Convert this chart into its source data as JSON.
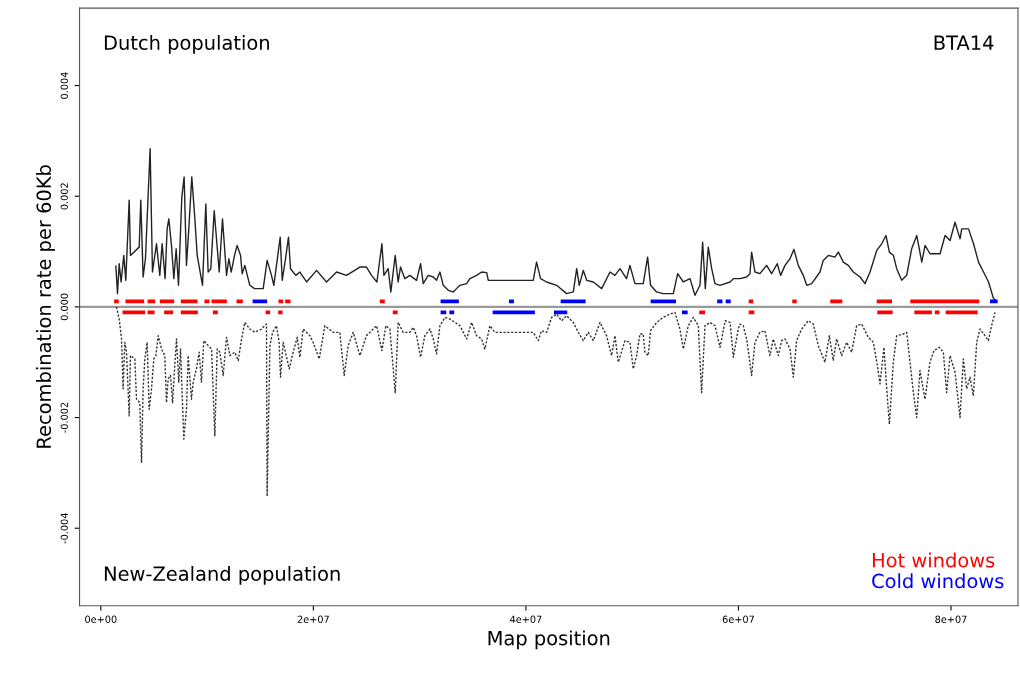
{
  "chart_data": {
    "type": "line",
    "xlabel": "Map position",
    "ylabel": "Recombination rate per 60Kb",
    "annotations": [
      "Dutch population",
      "BTA14",
      "New-Zealand population"
    ],
    "xlim": [
      -2000000,
      86300000
    ],
    "ylim": [
      -0.0054,
      0.0054
    ],
    "xticks": [
      {
        "value": 0,
        "label": "0e+00"
      },
      {
        "value": 20000000,
        "label": "2e+07"
      },
      {
        "value": 40000000,
        "label": "4e+07"
      },
      {
        "value": 60000000,
        "label": "6e+07"
      },
      {
        "value": 80000000,
        "label": "8e+07"
      }
    ],
    "yticks": [
      {
        "value": -0.004,
        "label": "-0.004"
      },
      {
        "value": -0.002,
        "label": "-0.002"
      },
      {
        "value": 0,
        "label": "0.000"
      },
      {
        "value": 0.002,
        "label": "0.002"
      },
      {
        "value": 0.004,
        "label": "0.004"
      }
    ],
    "ref_lines": [
      {
        "axis": "y",
        "value": 0,
        "color": "#9a9a9a"
      }
    ],
    "legend": "bottom right",
    "grid": false,
    "series": [
      {
        "color": "#222222",
        "line_style": "solid",
        "x": [
          1410000,
          1570000,
          1730000,
          1910000,
          2160000,
          2350000,
          2670000,
          2790000,
          3610000,
          3760000,
          3980000,
          4200000,
          4640000,
          4860000,
          5240000,
          5550000,
          5770000,
          6050000,
          6240000,
          6400000,
          6650000,
          6870000,
          7090000,
          7310000,
          7620000,
          7840000,
          8060000,
          8280000,
          8560000,
          8850000,
          9070000,
          9570000,
          9880000,
          10100000,
          10350000,
          10670000,
          11140000,
          11450000,
          11830000,
          12050000,
          12270000,
          12580000,
          12830000,
          13150000,
          13300000,
          13550000,
          14020000,
          14460000,
          15280000,
          15650000,
          16060000,
          16280000,
          16880000,
          17070000,
          17380000,
          17660000,
          17850000,
          18350000,
          18730000,
          19360000,
          20300000,
          21240000,
          22180000,
          23120000,
          24380000,
          25000000,
          25470000,
          25980000,
          26450000,
          26640000,
          27040000,
          27290000,
          27700000,
          27980000,
          28200000,
          28610000,
          29080000,
          29710000,
          30090000,
          30340000,
          30810000,
          31280000,
          31590000,
          31910000,
          32220000,
          32690000,
          33160000,
          33470000,
          33790000,
          34420000,
          34730000,
          35360000,
          35840000,
          36310000,
          36460000,
          40690000,
          41000000,
          41380000,
          41950000,
          42890000,
          43830000,
          44460000,
          44780000,
          45020000,
          45400000,
          45720000,
          46340000,
          47130000,
          47910000,
          48380000,
          48850000,
          49470000,
          49790000,
          50260000,
          51040000,
          51450000,
          51730000,
          52300000,
          52920000,
          53870000,
          54280000,
          54810000,
          55440000,
          55910000,
          56380000,
          56630000,
          56880000,
          57160000,
          57480000,
          57790000,
          58270000,
          59210000,
          59520000,
          60140000,
          60770000,
          61080000,
          61240000,
          61550000,
          62020000,
          62650000,
          63120000,
          63650000,
          63970000,
          64380000,
          64850000,
          65220000,
          65630000,
          66100000,
          66420000,
          66890000,
          67670000,
          67980000,
          68460000,
          69080000,
          69400000,
          69870000,
          70330000,
          70810000,
          71440000,
          71910000,
          72380000,
          73010000,
          73480000,
          73880000,
          74200000,
          74580000,
          74890000,
          75360000,
          75830000,
          76300000,
          76780000,
          77250000,
          77560000,
          78020000,
          78970000,
          79440000,
          79910000,
          80380000,
          80850000,
          81010000,
          81650000,
          82120000,
          82590000,
          83060000,
          83530000,
          84000000,
          84310000
        ],
        "values": [
          0.00075,
          0.00024,
          0.00078,
          0.00045,
          0.00093,
          0.00048,
          0.00193,
          0.00093,
          0.00108,
          0.00193,
          0.00054,
          0.00087,
          0.00286,
          0.00063,
          0.00114,
          0.00057,
          0.00114,
          0.00051,
          0.00141,
          0.00159,
          0.00111,
          0.00051,
          0.00105,
          0.00039,
          0.00198,
          0.00235,
          0.00075,
          0.00141,
          0.00235,
          0.00159,
          0.00093,
          0.00039,
          0.00186,
          0.00063,
          0.00069,
          0.00174,
          0.00063,
          0.00159,
          0.00057,
          0.00087,
          0.00063,
          0.00093,
          0.00111,
          0.00093,
          0.0006,
          0.00075,
          0.00039,
          0.00033,
          0.00033,
          0.00084,
          0.00057,
          0.00039,
          0.00126,
          0.00048,
          0.00087,
          0.00126,
          0.00069,
          0.00057,
          0.00063,
          0.00045,
          0.00066,
          0.00045,
          0.00063,
          0.00057,
          0.00072,
          0.00072,
          0.00057,
          0.00045,
          0.00114,
          0.00057,
          0.00069,
          0.00027,
          0.00093,
          0.00045,
          0.00072,
          0.00051,
          0.00057,
          0.00048,
          0.00078,
          0.00042,
          0.00057,
          0.00054,
          0.00048,
          0.00063,
          0.00039,
          0.0003,
          0.00027,
          0.00033,
          0.00039,
          0.00042,
          0.00051,
          0.00057,
          0.00063,
          0.00062,
          0.00048,
          0.00048,
          0.00081,
          0.00051,
          0.00045,
          0.00039,
          0.00024,
          0.00027,
          0.00069,
          0.00039,
          0.00066,
          0.00048,
          0.00045,
          0.00033,
          0.00063,
          0.00057,
          0.00069,
          0.00051,
          0.00075,
          0.00042,
          0.00042,
          0.0009,
          0.00039,
          0.00027,
          0.00024,
          0.00024,
          0.0006,
          0.00045,
          0.00051,
          0.00021,
          0.00039,
          0.00117,
          0.00033,
          0.00108,
          0.00069,
          0.00042,
          0.00039,
          0.00045,
          0.00051,
          0.00051,
          0.00054,
          0.0006,
          0.00099,
          0.00063,
          0.0006,
          0.00075,
          0.0006,
          0.00078,
          0.00057,
          0.00075,
          0.00087,
          0.00104,
          0.00075,
          0.00057,
          0.00039,
          0.00042,
          0.00063,
          0.00084,
          0.00093,
          0.0009,
          0.00099,
          0.00081,
          0.00075,
          0.00063,
          0.00054,
          0.00042,
          0.00063,
          0.00102,
          0.00114,
          0.00129,
          0.00099,
          0.00093,
          0.00069,
          0.00048,
          0.00057,
          0.00105,
          0.00129,
          0.00081,
          0.00111,
          0.00096,
          0.00096,
          0.00129,
          0.0012,
          0.00153,
          0.00123,
          0.00141,
          0.00141,
          0.00114,
          0.00081,
          0.00063,
          0.00045,
          0.00015,
          0.0001
        ]
      },
      {
        "color": "#333333",
        "line_style": "dotted",
        "x": [
          1470000,
          1730000,
          1950000,
          2100000,
          2260000,
          2420000,
          2670000,
          2790000,
          3200000,
          3360000,
          3670000,
          3830000,
          3980000,
          4140000,
          4360000,
          4550000,
          4770000,
          4990000,
          5180000,
          5400000,
          5710000,
          6020000,
          6180000,
          6340000,
          6560000,
          6750000,
          6960000,
          7120000,
          7340000,
          7500000,
          7810000,
          8060000,
          8220000,
          8530000,
          8690000,
          9000000,
          9250000,
          9470000,
          9690000,
          10100000,
          10420000,
          10730000,
          10950000,
          11200000,
          11510000,
          11830000,
          12140000,
          12610000,
          12930000,
          13240000,
          13550000,
          14020000,
          14490000,
          15120000,
          15590000,
          15650000,
          15910000,
          16160000,
          16530000,
          16780000,
          16910000,
          17160000,
          17730000,
          18100000,
          18480000,
          18730000,
          19040000,
          19670000,
          19980000,
          20550000,
          21080000,
          21870000,
          22490000,
          22900000,
          23280000,
          23750000,
          24380000,
          25000000,
          25630000,
          25950000,
          26450000,
          26820000,
          27200000,
          27700000,
          27980000,
          28450000,
          29080000,
          29400000,
          29710000,
          30090000,
          30490000,
          30970000,
          31280000,
          31590000,
          31910000,
          32380000,
          32860000,
          33320000,
          33790000,
          34420000,
          34890000,
          35360000,
          35830000,
          36140000,
          36610000,
          37080000,
          40690000,
          41160000,
          41470000,
          41950000,
          42420000,
          42890000,
          43360000,
          43830000,
          44460000,
          44930000,
          45400000,
          45870000,
          46340000,
          46970000,
          47590000,
          48060000,
          48380000,
          48690000,
          49320000,
          49790000,
          50100000,
          50420000,
          50730000,
          51040000,
          51200000,
          51510000,
          51730000,
          52300000,
          52920000,
          53550000,
          54020000,
          54490000,
          54810000,
          55280000,
          55750000,
          56220000,
          56530000,
          56850000,
          57320000,
          57790000,
          58270000,
          58750000,
          59210000,
          59520000,
          59980000,
          60140000,
          60450000,
          60770000,
          61240000,
          61550000,
          62020000,
          62490000,
          62960000,
          63280000,
          63750000,
          64060000,
          64380000,
          64850000,
          65160000,
          65470000,
          65950000,
          66570000,
          67040000,
          67510000,
          68140000,
          68550000,
          68920000,
          69240000,
          69710000,
          70180000,
          70650000,
          71120000,
          71590000,
          72220000,
          72690000,
          73070000,
          73320000,
          73690000,
          73950000,
          74200000,
          74570000,
          74890000,
          75510000,
          75830000,
          76140000,
          76460000,
          76770000,
          77080000,
          77550000,
          78020000,
          78400000,
          78900000,
          79280000,
          79590000,
          79910000,
          80380000,
          80850000,
          81160000,
          81470000,
          81790000,
          82100000,
          82420000,
          82730000,
          83200000,
          83510000,
          83820000,
          84140000
        ],
        "values": [
          0.0,
          -0.00022,
          -0.00058,
          -0.00148,
          -0.00064,
          -0.00082,
          -0.00197,
          -0.00088,
          -0.00094,
          -0.00167,
          -0.00173,
          -0.00281,
          -0.00148,
          -0.00094,
          -0.00064,
          -0.00185,
          -0.00148,
          -0.00094,
          -0.00088,
          -0.00052,
          -0.00076,
          -0.00088,
          -0.00173,
          -0.0013,
          -0.00124,
          -0.00173,
          -0.00106,
          -0.00058,
          -0.00136,
          -0.00076,
          -0.00239,
          -0.00185,
          -0.00088,
          -0.00167,
          -0.00136,
          -0.00112,
          -0.00082,
          -0.00136,
          -0.00061,
          -0.0007,
          -0.00076,
          -0.00233,
          -0.00076,
          -0.00082,
          -0.00124,
          -0.00055,
          -0.00088,
          -0.00082,
          -0.00097,
          -0.00058,
          -0.00028,
          -0.0004,
          -0.00046,
          -0.0004,
          -0.00031,
          -0.00342,
          -0.0007,
          -0.00046,
          -0.00034,
          -0.00064,
          -0.00127,
          -0.00064,
          -0.00112,
          -0.00082,
          -0.00055,
          -0.00091,
          -0.0004,
          -0.00052,
          -0.00064,
          -0.00094,
          -0.00034,
          -0.00046,
          -0.00046,
          -0.00124,
          -0.0007,
          -0.00046,
          -0.00088,
          -0.00052,
          -0.0004,
          -0.00034,
          -0.00079,
          -0.00034,
          -0.0004,
          -0.00155,
          -0.00028,
          -0.00046,
          -0.00046,
          -0.00037,
          -0.00052,
          -0.00091,
          -0.00052,
          -0.0004,
          -0.00058,
          -0.00085,
          -0.00034,
          -0.00019,
          -0.00022,
          -0.00028,
          -0.00034,
          -0.00058,
          -0.00028,
          -0.00052,
          -0.00058,
          -0.00076,
          -0.00034,
          -0.00046,
          -0.00046,
          -0.00061,
          -0.00043,
          -0.00046,
          -0.00019,
          -0.00013,
          -0.00025,
          -0.00016,
          -0.00028,
          -0.00046,
          -0.00061,
          -0.00046,
          -0.00061,
          -0.00028,
          -0.00052,
          -0.00088,
          -0.00052,
          -0.001,
          -0.00061,
          -0.00064,
          -0.00112,
          -0.00088,
          -0.00049,
          -0.00049,
          -0.00082,
          -0.00088,
          -0.00043,
          -0.00028,
          -0.00019,
          -0.00013,
          -0.0001,
          -0.0004,
          -0.00076,
          -0.00034,
          -0.00019,
          -0.00034,
          -0.00155,
          -0.00034,
          -0.00028,
          -0.00034,
          -0.00073,
          -0.00025,
          -0.00028,
          -0.00091,
          -0.0004,
          -0.00031,
          -0.00034,
          -0.00058,
          -0.00124,
          -0.00064,
          -0.00046,
          -0.00043,
          -0.00088,
          -0.00058,
          -0.00088,
          -0.00061,
          -0.00058,
          -0.00076,
          -0.00127,
          -0.00061,
          -0.0004,
          -0.00025,
          -0.00031,
          -0.0007,
          -0.001,
          -0.00052,
          -0.00097,
          -0.00058,
          -0.00088,
          -0.00064,
          -0.00082,
          -0.00034,
          -0.00031,
          -0.00055,
          -0.00064,
          -0.00106,
          -0.00139,
          -0.00073,
          -0.00148,
          -0.00212,
          -0.001,
          -0.00052,
          -0.00049,
          -0.00046,
          -0.001,
          -0.00155,
          -0.002,
          -0.00115,
          -0.00167,
          -0.001,
          -0.00079,
          -0.00073,
          -0.00082,
          -0.00155,
          -0.00088,
          -0.00118,
          -0.002,
          -0.00094,
          -0.00148,
          -0.00127,
          -0.00161,
          -0.00064,
          -0.0004,
          -0.00052,
          -0.00061,
          -0.00034,
          -0.0001
        ]
      },
      {
        "name": "Hot windows",
        "color": "#ff0000",
        "line_style": "solid",
        "x": [
          1250000,
          1690000,
          null,
          2320000,
          4080000,
          null,
          4400000,
          5110000,
          null,
          5550000,
          6900000,
          null,
          7530000,
          9100000,
          null,
          9750000,
          10220000,
          null,
          10420000,
          11860000,
          null,
          12770000,
          13360000,
          null,
          16720000,
          17160000,
          null,
          17350000,
          17850000,
          null,
          26250000,
          26720000,
          null,
          60960000,
          61390000,
          null,
          65060000,
          65480000,
          null,
          68640000,
          69770000,
          null,
          73010000,
          74450000,
          null,
          76170000,
          82660000
        ],
        "values": [
          0.0001,
          0.0001,
          null,
          0.0001,
          0.0001,
          null,
          0.0001,
          0.0001,
          null,
          0.0001,
          0.0001,
          null,
          0.0001,
          0.0001,
          null,
          0.0001,
          0.0001,
          null,
          0.0001,
          0.0001,
          null,
          0.0001,
          0.0001,
          null,
          0.0001,
          0.0001,
          null,
          0.0001,
          0.0001,
          null,
          0.0001,
          0.0001,
          null,
          0.0001,
          0.0001,
          null,
          0.0001,
          0.0001,
          null,
          0.0001,
          0.0001,
          null,
          0.0001,
          0.0001,
          null,
          0.0001,
          0.0001
        ]
      },
      {
        "name": "Cold windows",
        "color": "#0000ff",
        "line_style": "solid",
        "x": [
          14280000,
          15650000,
          null,
          31970000,
          33690000,
          null,
          38400000,
          38870000,
          null,
          43270000,
          45620000,
          null,
          51740000,
          54120000,
          null,
          58000000,
          58500000,
          null,
          58800000,
          59270000,
          null,
          83670000,
          84390000
        ],
        "values": [
          0.0001,
          0.0001,
          null,
          0.0001,
          0.0001,
          null,
          0.0001,
          0.0001,
          null,
          0.0001,
          0.0001,
          null,
          0.0001,
          0.0001,
          null,
          0.0001,
          0.0001,
          null,
          0.0001,
          0.0001,
          null,
          0.0001,
          0.0001
        ]
      },
      {
        "color": "#ff0000",
        "line_style": "solid",
        "x": [
          2040000,
          4170000,
          null,
          4400000,
          5060000,
          null,
          5960000,
          6800000,
          null,
          7530000,
          9130000,
          null,
          10540000,
          11010000,
          null,
          15500000,
          15930000,
          null,
          16690000,
          17100000,
          null,
          27470000,
          27930000,
          null,
          56310000,
          56850000,
          null,
          60960000,
          61490000,
          null,
          73060000,
          74510000,
          null,
          76550000,
          78200000,
          null,
          78480000,
          78920000,
          null,
          79500000,
          82510000
        ],
        "values": [
          -0.0001,
          -0.0001,
          null,
          -0.0001,
          -0.0001,
          null,
          -0.0001,
          -0.0001,
          null,
          -0.0001,
          -0.0001,
          null,
          -0.0001,
          -0.0001,
          null,
          -0.0001,
          -0.0001,
          null,
          -0.0001,
          -0.0001,
          null,
          -0.0001,
          -0.0001,
          null,
          -0.0001,
          -0.0001,
          null,
          -0.0001,
          -0.0001,
          null,
          -0.0001,
          -0.0001,
          null,
          -0.0001,
          -0.0001,
          null,
          -0.0001,
          -0.0001,
          null,
          -0.0001,
          -0.0001
        ]
      },
      {
        "color": "#0000ff",
        "line_style": "solid",
        "x": [
          31970000,
          32500000,
          null,
          32800000,
          33250000,
          null,
          36870000,
          40850000,
          null,
          42640000,
          43890000,
          null,
          54680000,
          55220000
        ],
        "values": [
          -0.0001,
          -0.0001,
          null,
          -0.0001,
          -0.0001,
          null,
          -0.0001,
          -0.0001,
          null,
          -0.0001,
          -0.0001,
          null,
          -0.0001,
          -0.0001
        ]
      }
    ]
  }
}
